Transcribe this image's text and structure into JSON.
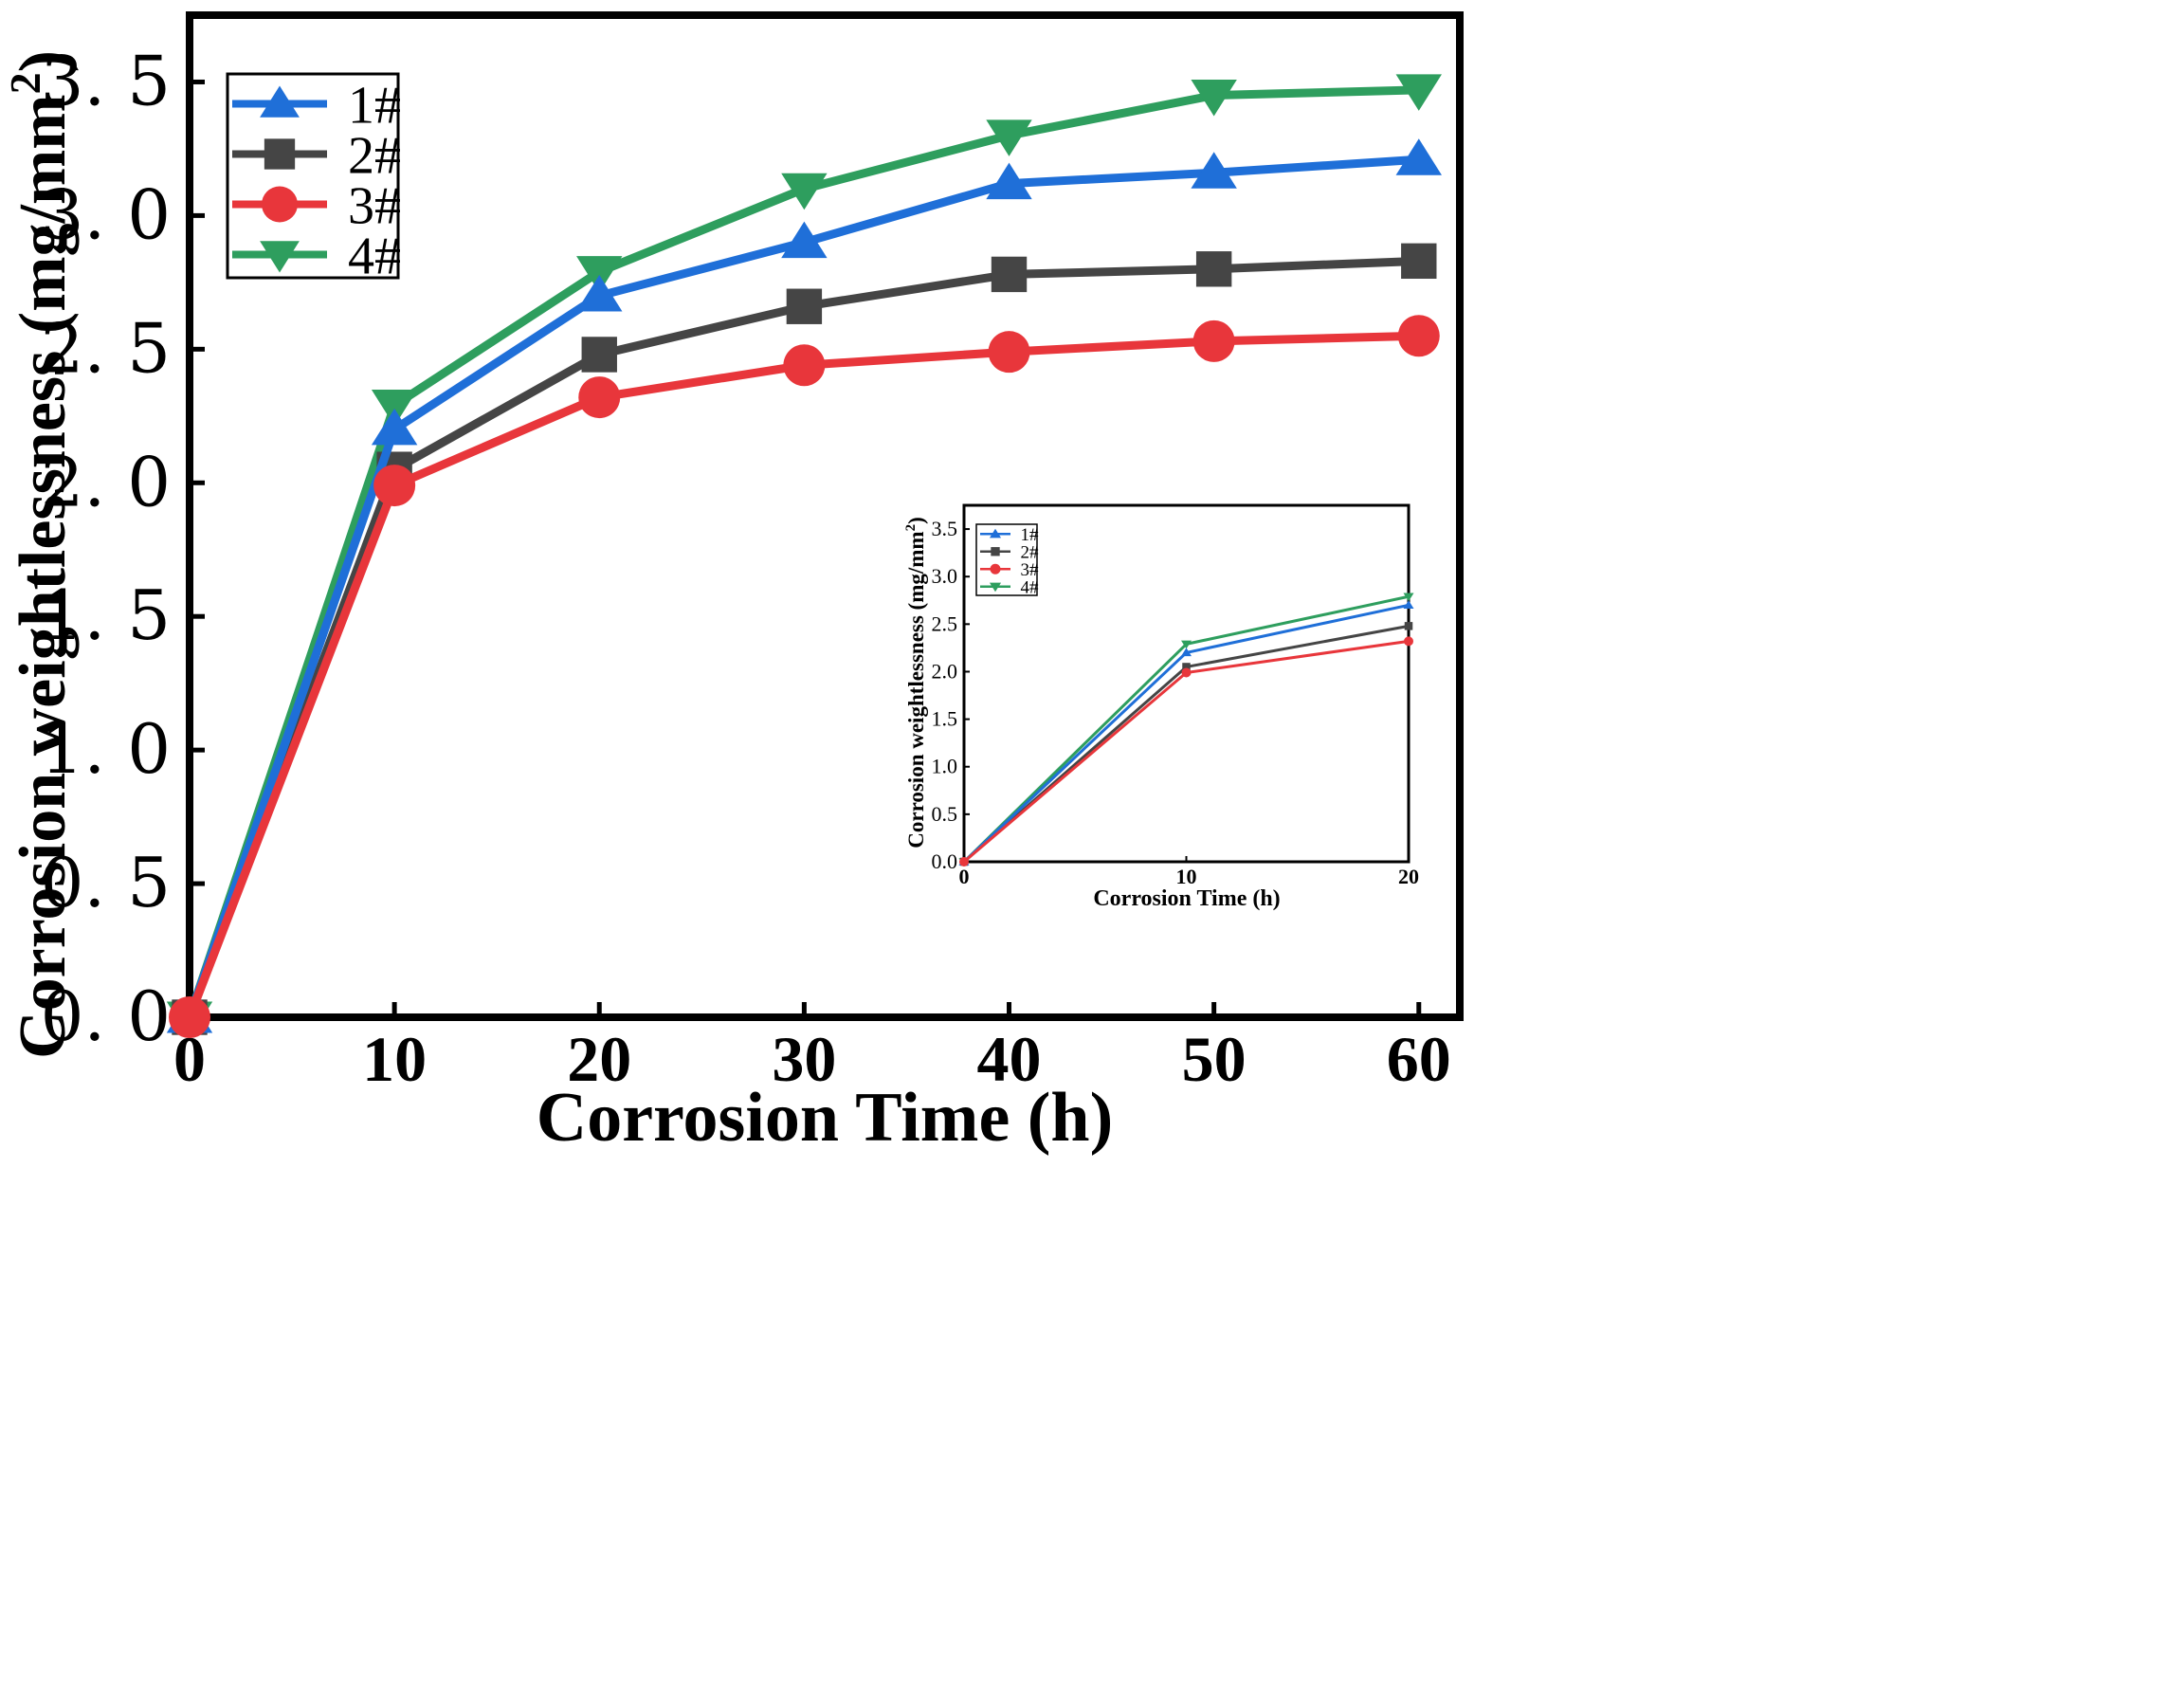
{
  "chart_data": [
    {
      "id": "main",
      "type": "line",
      "title": "",
      "xlabel": "Corrosion Time (h)",
      "ylabel": "Corrosion weightlessness (mg/mm",
      "ylabel_sup": "2",
      "ylabel_close": ")",
      "xlim": [
        0,
        62
      ],
      "ylim": [
        0,
        3.75
      ],
      "xticks": [
        0,
        10,
        20,
        30,
        40,
        50,
        60
      ],
      "xtick_labels": [
        "0",
        "10",
        "20",
        "30",
        "40",
        "50",
        "60"
      ],
      "yticks": [
        0,
        0.5,
        1.0,
        1.5,
        2.0,
        2.5,
        3.0,
        3.5
      ],
      "ytick_labels": [
        "0. 0",
        "0. 5",
        "1. 0",
        "1. 5",
        "2. 0",
        "2. 5",
        "3. 0",
        "3. 5"
      ],
      "grid": false,
      "legend_position": "top-left",
      "x": [
        0,
        10,
        20,
        30,
        40,
        50,
        60
      ],
      "series": [
        {
          "name": "1#",
          "color": "#1f6fd8",
          "marker": "triangle-up",
          "values": [
            0,
            2.2,
            2.7,
            2.9,
            3.12,
            3.16,
            3.21
          ]
        },
        {
          "name": "2#",
          "color": "#454545",
          "marker": "square",
          "values": [
            0,
            2.05,
            2.48,
            2.66,
            2.78,
            2.8,
            2.83
          ]
        },
        {
          "name": "3#",
          "color": "#e8363b",
          "marker": "circle",
          "values": [
            0,
            1.99,
            2.32,
            2.44,
            2.49,
            2.53,
            2.55
          ]
        },
        {
          "name": "4#",
          "color": "#2e9e5e",
          "marker": "triangle-down",
          "values": [
            0,
            2.29,
            2.79,
            3.1,
            3.3,
            3.45,
            3.47
          ]
        }
      ]
    },
    {
      "id": "inset",
      "type": "line",
      "title": "",
      "xlabel": "Corrosion Time (h)",
      "ylabel": "Corrosion weightlessness (mg/mm",
      "ylabel_sup": "2",
      "ylabel_close": ")",
      "xlim": [
        0,
        20
      ],
      "ylim": [
        0,
        3.75
      ],
      "xticks": [
        0,
        10,
        20
      ],
      "xtick_labels": [
        "0",
        "10",
        "20"
      ],
      "yticks": [
        0,
        0.5,
        1.0,
        1.5,
        2.0,
        2.5,
        3.0,
        3.5
      ],
      "ytick_labels": [
        "0.0",
        "0.5",
        "1.0",
        "1.5",
        "2.0",
        "2.5",
        "3.0",
        "3.5"
      ],
      "grid": false,
      "legend_position": "top-left",
      "x": [
        0,
        10,
        20
      ],
      "series": [
        {
          "name": "1#",
          "color": "#1f6fd8",
          "marker": "triangle-up",
          "values": [
            0,
            2.2,
            2.7
          ]
        },
        {
          "name": "2#",
          "color": "#454545",
          "marker": "square",
          "values": [
            0,
            2.05,
            2.48
          ]
        },
        {
          "name": "3#",
          "color": "#e8363b",
          "marker": "circle",
          "values": [
            0,
            1.99,
            2.32
          ]
        },
        {
          "name": "4#",
          "color": "#2e9e5e",
          "marker": "triangle-down",
          "values": [
            0,
            2.29,
            2.79
          ]
        }
      ]
    }
  ]
}
